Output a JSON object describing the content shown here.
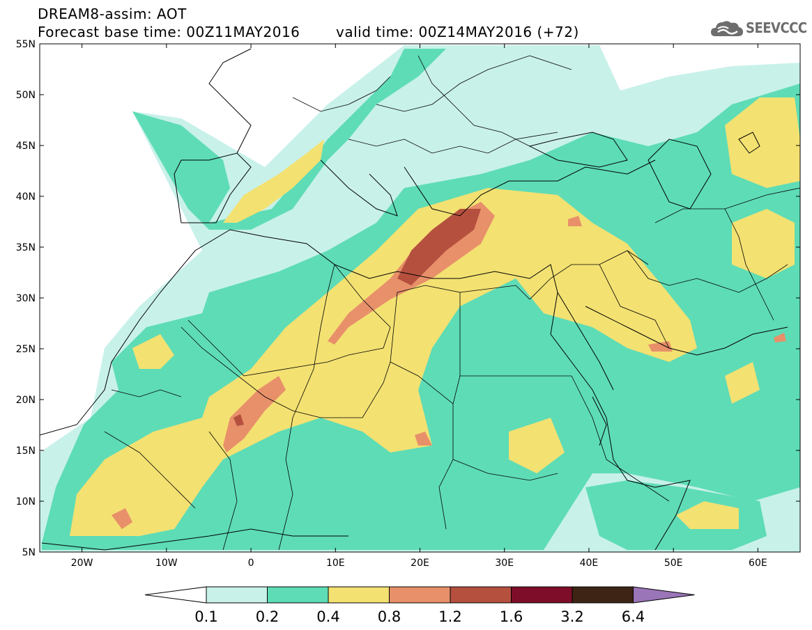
{
  "header": {
    "line1": "DREAM8-assim: AOT",
    "line2": "Forecast base time: 00Z11MAY2016",
    "line3": "valid time: 00Z14MAY2016 (+72)"
  },
  "logo": {
    "text": "SEEVCCC",
    "icon": "cloud-icon"
  },
  "map": {
    "lon_range": [
      -25,
      65
    ],
    "lat_range": [
      5,
      55
    ],
    "lon_ticks": [
      {
        "v": -20,
        "label": "20W"
      },
      {
        "v": -10,
        "label": "10W"
      },
      {
        "v": 0,
        "label": "0"
      },
      {
        "v": 10,
        "label": "10E"
      },
      {
        "v": 20,
        "label": "20E"
      },
      {
        "v": 30,
        "label": "30E"
      },
      {
        "v": 40,
        "label": "40E"
      },
      {
        "v": 50,
        "label": "50E"
      },
      {
        "v": 60,
        "label": "60E"
      }
    ],
    "lat_ticks": [
      {
        "v": 5,
        "label": "5N"
      },
      {
        "v": 10,
        "label": "10N"
      },
      {
        "v": 15,
        "label": "15N"
      },
      {
        "v": 20,
        "label": "20N"
      },
      {
        "v": 25,
        "label": "25N"
      },
      {
        "v": 30,
        "label": "30N"
      },
      {
        "v": 35,
        "label": "35N"
      },
      {
        "v": 40,
        "label": "40N"
      },
      {
        "v": 45,
        "label": "45N"
      },
      {
        "v": 50,
        "label": "50N"
      },
      {
        "v": 55,
        "label": "55N"
      }
    ]
  },
  "colorbar": {
    "bins": [
      {
        "color": "#c8f1ea"
      },
      {
        "color": "#5edcb6"
      },
      {
        "color": "#f3e172"
      },
      {
        "color": "#e8906a"
      },
      {
        "color": "#b5503f"
      },
      {
        "color": "#7e0d2a"
      },
      {
        "color": "#3d2414"
      }
    ],
    "low_color": "#ffffff",
    "high_color": "#9a75b8",
    "labels": [
      "0.1",
      "0.2",
      "0.4",
      "0.8",
      "1.2",
      "1.6",
      "3.2",
      "6.4"
    ]
  }
}
